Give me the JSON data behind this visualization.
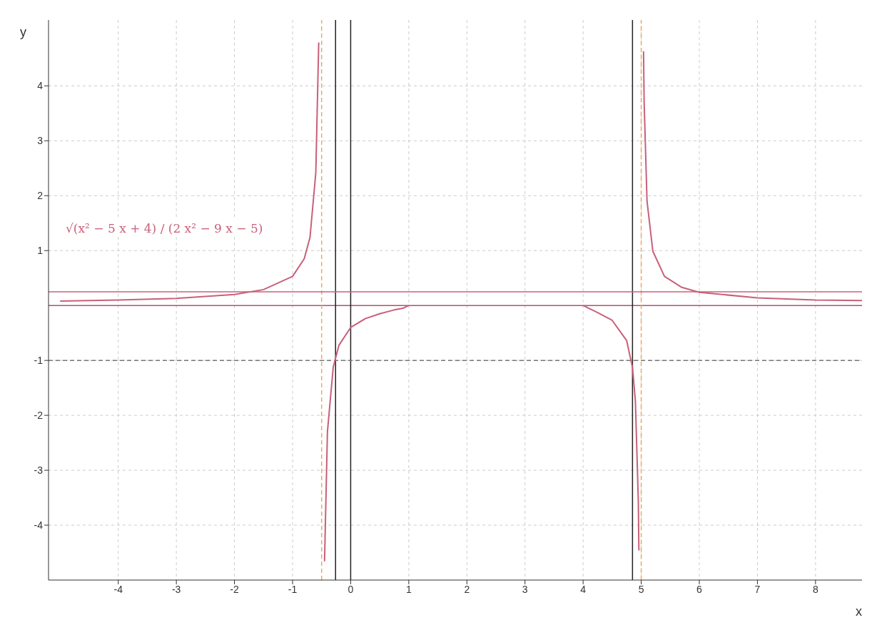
{
  "chart_data": {
    "type": "line",
    "xlabel": "x",
    "ylabel": "y",
    "xlim": [
      -5.2,
      8.8
    ],
    "ylim": [
      -5,
      5.2
    ],
    "xticks": [
      -4,
      -3,
      -2,
      -1,
      0,
      1,
      2,
      3,
      4,
      5,
      6,
      7,
      8
    ],
    "yticks": [
      -4,
      -3,
      -2,
      -1,
      1,
      2,
      3,
      4
    ],
    "grid": true,
    "marker": "none",
    "line_style": "solid",
    "series": [
      {
        "name": "√(x² − 5 x + 4) / (2 x² − 9 x − 5)",
        "color": "#c8607a",
        "x": [
          -5,
          -4,
          -3,
          -2,
          -1.5,
          -1,
          -0.8,
          -0.7,
          -0.6,
          -0.55,
          -0.5,
          -0.45,
          -0.4,
          -0.3,
          -0.2,
          0,
          0.25,
          0.5,
          0.75,
          0.9,
          1,
          2.5,
          4,
          4.25,
          4.5,
          4.75,
          4.85,
          4.9,
          4.95,
          4.96,
          5,
          5.04,
          5.05,
          5.1,
          5.2,
          5.4,
          5.7,
          6,
          7,
          8,
          8.8
        ],
        "values": [
          0.08,
          0.1,
          0.13,
          0.2,
          0.29,
          0.53,
          0.85,
          1.24,
          2.42,
          4.79,
          null,
          -4.66,
          -2.3,
          -1.12,
          -0.72,
          -0.4,
          -0.24,
          -0.15,
          -0.08,
          -0.05,
          0,
          null,
          0,
          -0.13,
          -0.27,
          -0.64,
          -1.13,
          -1.74,
          -3.55,
          -4.46,
          null,
          4.63,
          3.72,
          1.9,
          0.99,
          0.53,
          0.33,
          0.24,
          0.14,
          0.1,
          0.09
        ]
      }
    ],
    "ref_lines": [
      {
        "axis": "y",
        "value": 0,
        "color": "#b0506a"
      },
      {
        "axis": "x",
        "value": 0,
        "color": "#222222"
      },
      {
        "axis": "x",
        "value": -0.5,
        "color": "#f0a860",
        "line_style": "dashed"
      },
      {
        "axis": "x",
        "value": 5,
        "color": "#f0a860",
        "line_style": "dashed"
      },
      {
        "axis": "x",
        "value": -0.26,
        "color": "#222222"
      },
      {
        "axis": "x",
        "value": 4.85,
        "color": "#222222"
      },
      {
        "axis": "y",
        "value": -1,
        "color": "#777777",
        "line_style": "dashed"
      },
      {
        "axis": "y",
        "value": 0.25,
        "color": "#c8607a"
      }
    ]
  }
}
